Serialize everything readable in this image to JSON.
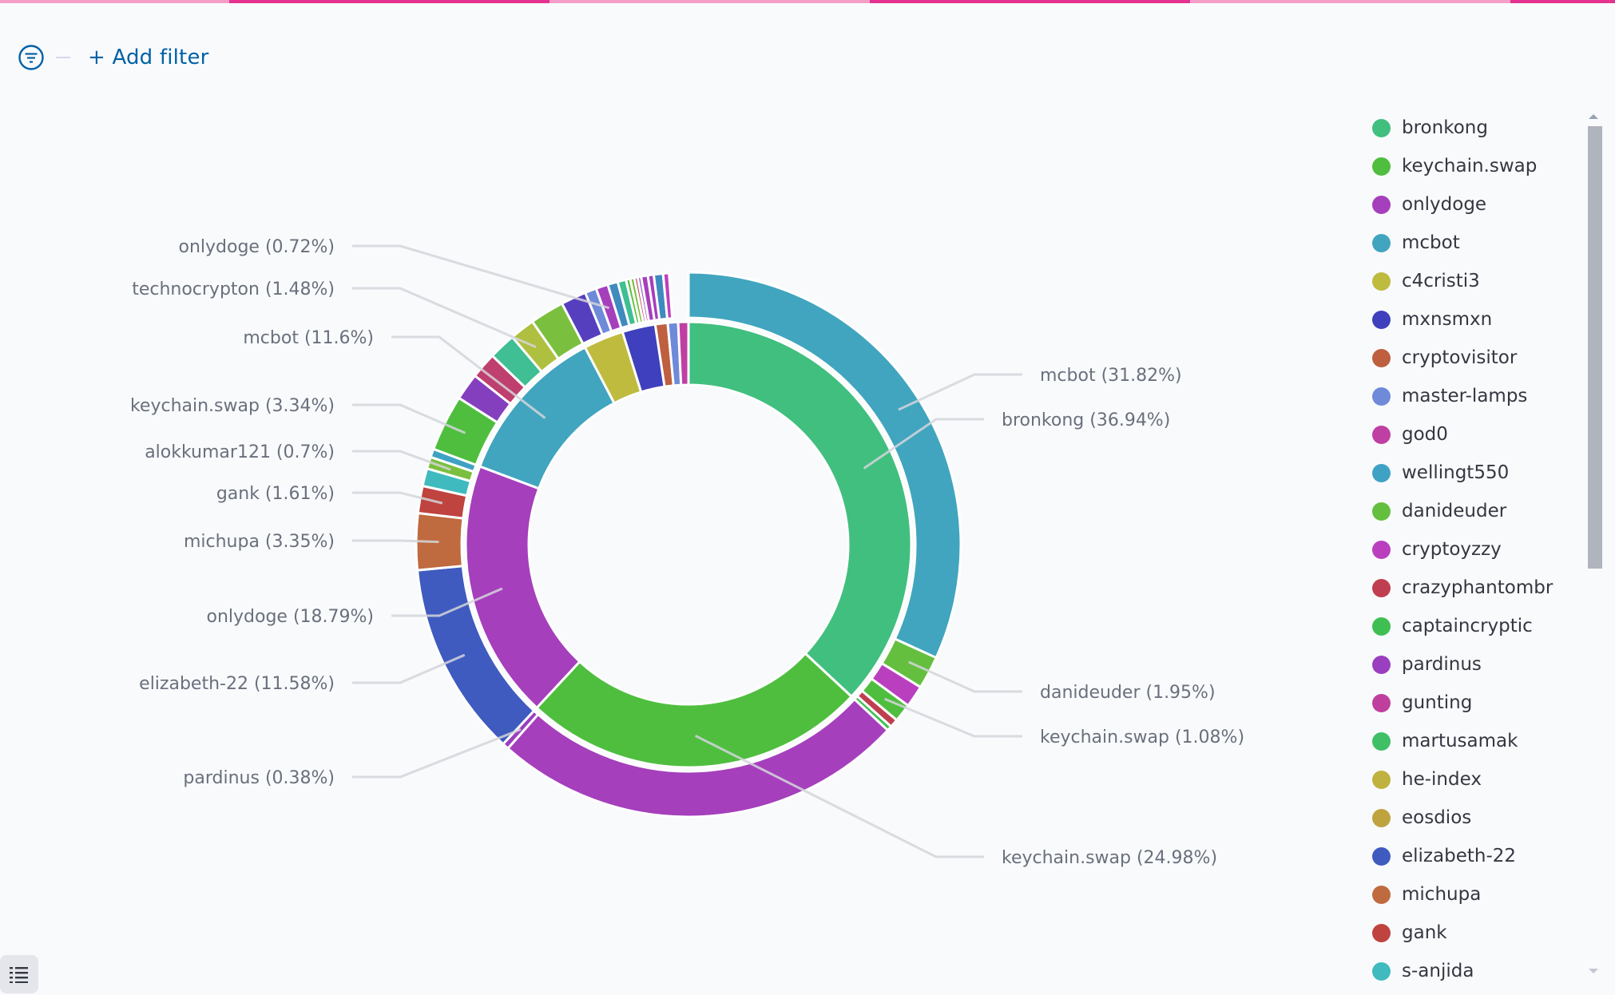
{
  "loading_bar": {
    "colors": {
      "light": "#f59fc8",
      "dark": "#e5318f"
    },
    "segments": [
      "light",
      "dark",
      "light",
      "dark",
      "light",
      "dark"
    ]
  },
  "filter_bar": {
    "icon": "filter-icon",
    "add_filter_label": "+ Add filter",
    "accent": "#0061a6"
  },
  "legend": {
    "items": [
      {
        "label": "bronkong",
        "color": "#41bf7f"
      },
      {
        "label": "keychain.swap",
        "color": "#4fbe3f"
      },
      {
        "label": "onlydoge",
        "color": "#a53fbc"
      },
      {
        "label": "mcbot",
        "color": "#41a5bf"
      },
      {
        "label": "c4cristi3",
        "color": "#bfbb3f"
      },
      {
        "label": "mxnsmxn",
        "color": "#3f40bd"
      },
      {
        "label": "cryptovisitor",
        "color": "#be5f3f"
      },
      {
        "label": "master-lamps",
        "color": "#6e8ad9"
      },
      {
        "label": "god0",
        "color": "#bf3fa3"
      },
      {
        "label": "wellingt550",
        "color": "#3fa2c4"
      },
      {
        "label": "danideuder",
        "color": "#64bf3f"
      },
      {
        "label": "cryptoyzzy",
        "color": "#b93fbf"
      },
      {
        "label": "crazyphantombr",
        "color": "#bf3f50"
      },
      {
        "label": "captaincryptic",
        "color": "#3fbf51"
      },
      {
        "label": "pardinus",
        "color": "#9a3fbf"
      },
      {
        "label": "gunting",
        "color": "#bf3f9e"
      },
      {
        "label": "martusamak",
        "color": "#3fbf66"
      },
      {
        "label": "he-index",
        "color": "#bfb23f"
      },
      {
        "label": "eosdios",
        "color": "#bfa33f"
      },
      {
        "label": "elizabeth-22",
        "color": "#3f5bbf"
      },
      {
        "label": "michupa",
        "color": "#bf6a3f"
      },
      {
        "label": "gank",
        "color": "#bf433f"
      },
      {
        "label": "s-anjida",
        "color": "#3fbabf"
      }
    ]
  },
  "chart_data": {
    "type": "pie",
    "subtype": "two-level donut (sunburst)",
    "title": "",
    "legend_position": "right",
    "inner_ring": [
      {
        "label": "bronkong",
        "percent": 36.94,
        "shown_label": "bronkong (36.94%)",
        "color": "#41bf7f",
        "children": [
          {
            "label": "mcbot",
            "percent": 31.82,
            "shown_label": "mcbot (31.82%)",
            "color": "#41a5bf"
          },
          {
            "label": "danideuder",
            "percent": 1.95,
            "shown_label": "danideuder (1.95%)",
            "color": "#64bf3f"
          },
          {
            "label": "cryptoyzzy",
            "percent": 1.3,
            "color": "#b93fbf"
          },
          {
            "label": "keychain.swap",
            "percent": 1.08,
            "shown_label": "keychain.swap (1.08%)",
            "color": "#4fbe3f"
          },
          {
            "label": "crazyphantombr",
            "percent": 0.5,
            "color": "#bf3f50"
          },
          {
            "label": "captaincryptic",
            "percent": 0.29,
            "color": "#3fbf51"
          }
        ]
      },
      {
        "label": "keychain.swap",
        "percent": 24.98,
        "shown_label": "keychain.swap (24.98%)",
        "color": "#4fbe3f",
        "children": [
          {
            "label": "onlydoge",
            "percent": 24.6,
            "color": "#a53fbc"
          },
          {
            "label": "pardinus",
            "percent": 0.38,
            "shown_label": "pardinus (0.38%)",
            "color": "#9a3fbf"
          }
        ]
      },
      {
        "label": "onlydoge",
        "percent": 18.79,
        "shown_label": "onlydoge (18.79%)",
        "color": "#a53fbc",
        "children": [
          {
            "label": "elizabeth-22",
            "percent": 11.58,
            "shown_label": "elizabeth-22 (11.58%)",
            "color": "#3f5bbf"
          },
          {
            "label": "michupa",
            "percent": 3.35,
            "shown_label": "michupa (3.35%)",
            "color": "#bf6a3f"
          },
          {
            "label": "gank",
            "percent": 1.61,
            "shown_label": "gank (1.61%)",
            "color": "#bf433f"
          },
          {
            "label": "s-anjida",
            "percent": 1.05,
            "color": "#3fbabf"
          },
          {
            "label": "alokkumar121",
            "percent": 0.7,
            "shown_label": "alokkumar121 (0.7%)",
            "color": "#7bbf3f"
          },
          {
            "label": "wellingt550",
            "percent": 0.5,
            "color": "#3fa2c4"
          }
        ]
      },
      {
        "label": "mcbot",
        "percent": 11.6,
        "shown_label": "mcbot (11.6%)",
        "color": "#41a5bf",
        "children": [
          {
            "label": "keychain.swap",
            "percent": 3.34,
            "shown_label": "keychain.swap (3.34%)",
            "color": "#4fbe3f"
          },
          {
            "label": "pardinus",
            "percent": 1.6,
            "color": "#843fbf"
          },
          {
            "label": "crazyphantombr",
            "percent": 1.55,
            "color": "#bf3f6e"
          },
          {
            "label": "martusamak",
            "percent": 1.6,
            "color": "#3fbf93"
          },
          {
            "label": "technocrypton",
            "percent": 1.48,
            "shown_label": "technocrypton (1.48%)",
            "color": "#afbf3f"
          },
          {
            "label": "danideuder",
            "percent": 2.03,
            "color": "#7bbf3f"
          }
        ]
      },
      {
        "label": "c4cristi3",
        "percent": 2.9,
        "color": "#bfbb3f",
        "children": [
          {
            "label": "mxnsmxn",
            "percent": 1.5,
            "color": "#563fbf"
          },
          {
            "label": "master-lamps",
            "percent": 0.68,
            "color": "#6e8ad9"
          },
          {
            "label": "onlydoge",
            "percent": 0.72,
            "shown_label": "onlydoge (0.72%)",
            "color": "#a53fbc"
          }
        ]
      },
      {
        "label": "mxnsmxn",
        "percent": 2.4,
        "color": "#3f40bd",
        "children": [
          {
            "label": "wellingt550",
            "percent": 0.6,
            "color": "#3f8abf"
          },
          {
            "label": "martusamak",
            "percent": 0.5,
            "color": "#3fbf93"
          },
          {
            "label": "captaincryptic",
            "percent": 0.25,
            "color": "#5bbf3f"
          },
          {
            "label": "danideuder",
            "percent": 0.25,
            "color": "#7bbf3f"
          },
          {
            "label": "crazyphantombr",
            "percent": 0.2,
            "color": "#bf3f50"
          },
          {
            "label": "pardinus",
            "percent": 0.2,
            "color": "#843fbf"
          },
          {
            "label": "onlydoge",
            "percent": 0.4,
            "color": "#a53fbc"
          }
        ]
      },
      {
        "label": "cryptovisitor",
        "percent": 0.9,
        "color": "#be5f3f",
        "children": [
          {
            "label": "onlydoge",
            "percent": 0.35,
            "color": "#a53fbc"
          },
          {
            "label": "wellingt550",
            "percent": 0.55,
            "color": "#3f8abf"
          }
        ]
      },
      {
        "label": "master-lamps",
        "percent": 0.75,
        "color": "#6e8ad9",
        "children": [
          {
            "label": "god0",
            "percent": 0.35,
            "color": "#bf3fbb"
          }
        ]
      },
      {
        "label": "god0",
        "percent": 0.74,
        "color": "#bf3fa3",
        "children": []
      }
    ],
    "annotations": [
      {
        "text": "onlydoge (0.72%)",
        "side": "left"
      },
      {
        "text": "technocrypton (1.48%)",
        "side": "left"
      },
      {
        "text": "mcbot (11.6%)",
        "side": "left"
      },
      {
        "text": "keychain.swap (3.34%)",
        "side": "left"
      },
      {
        "text": "alokkumar121 (0.7%)",
        "side": "left"
      },
      {
        "text": "gank (1.61%)",
        "side": "left"
      },
      {
        "text": "michupa (3.35%)",
        "side": "left"
      },
      {
        "text": "onlydoge (18.79%)",
        "side": "left"
      },
      {
        "text": "elizabeth-22 (11.58%)",
        "side": "left"
      },
      {
        "text": "pardinus (0.38%)",
        "side": "left"
      },
      {
        "text": "mcbot (31.82%)",
        "side": "right"
      },
      {
        "text": "bronkong (36.94%)",
        "side": "right"
      },
      {
        "text": "danideuder (1.95%)",
        "side": "right"
      },
      {
        "text": "keychain.swap (1.08%)",
        "side": "right"
      },
      {
        "text": "keychain.swap (24.98%)",
        "side": "right"
      }
    ]
  },
  "bottom_toggle": {
    "icon": "list-icon"
  }
}
